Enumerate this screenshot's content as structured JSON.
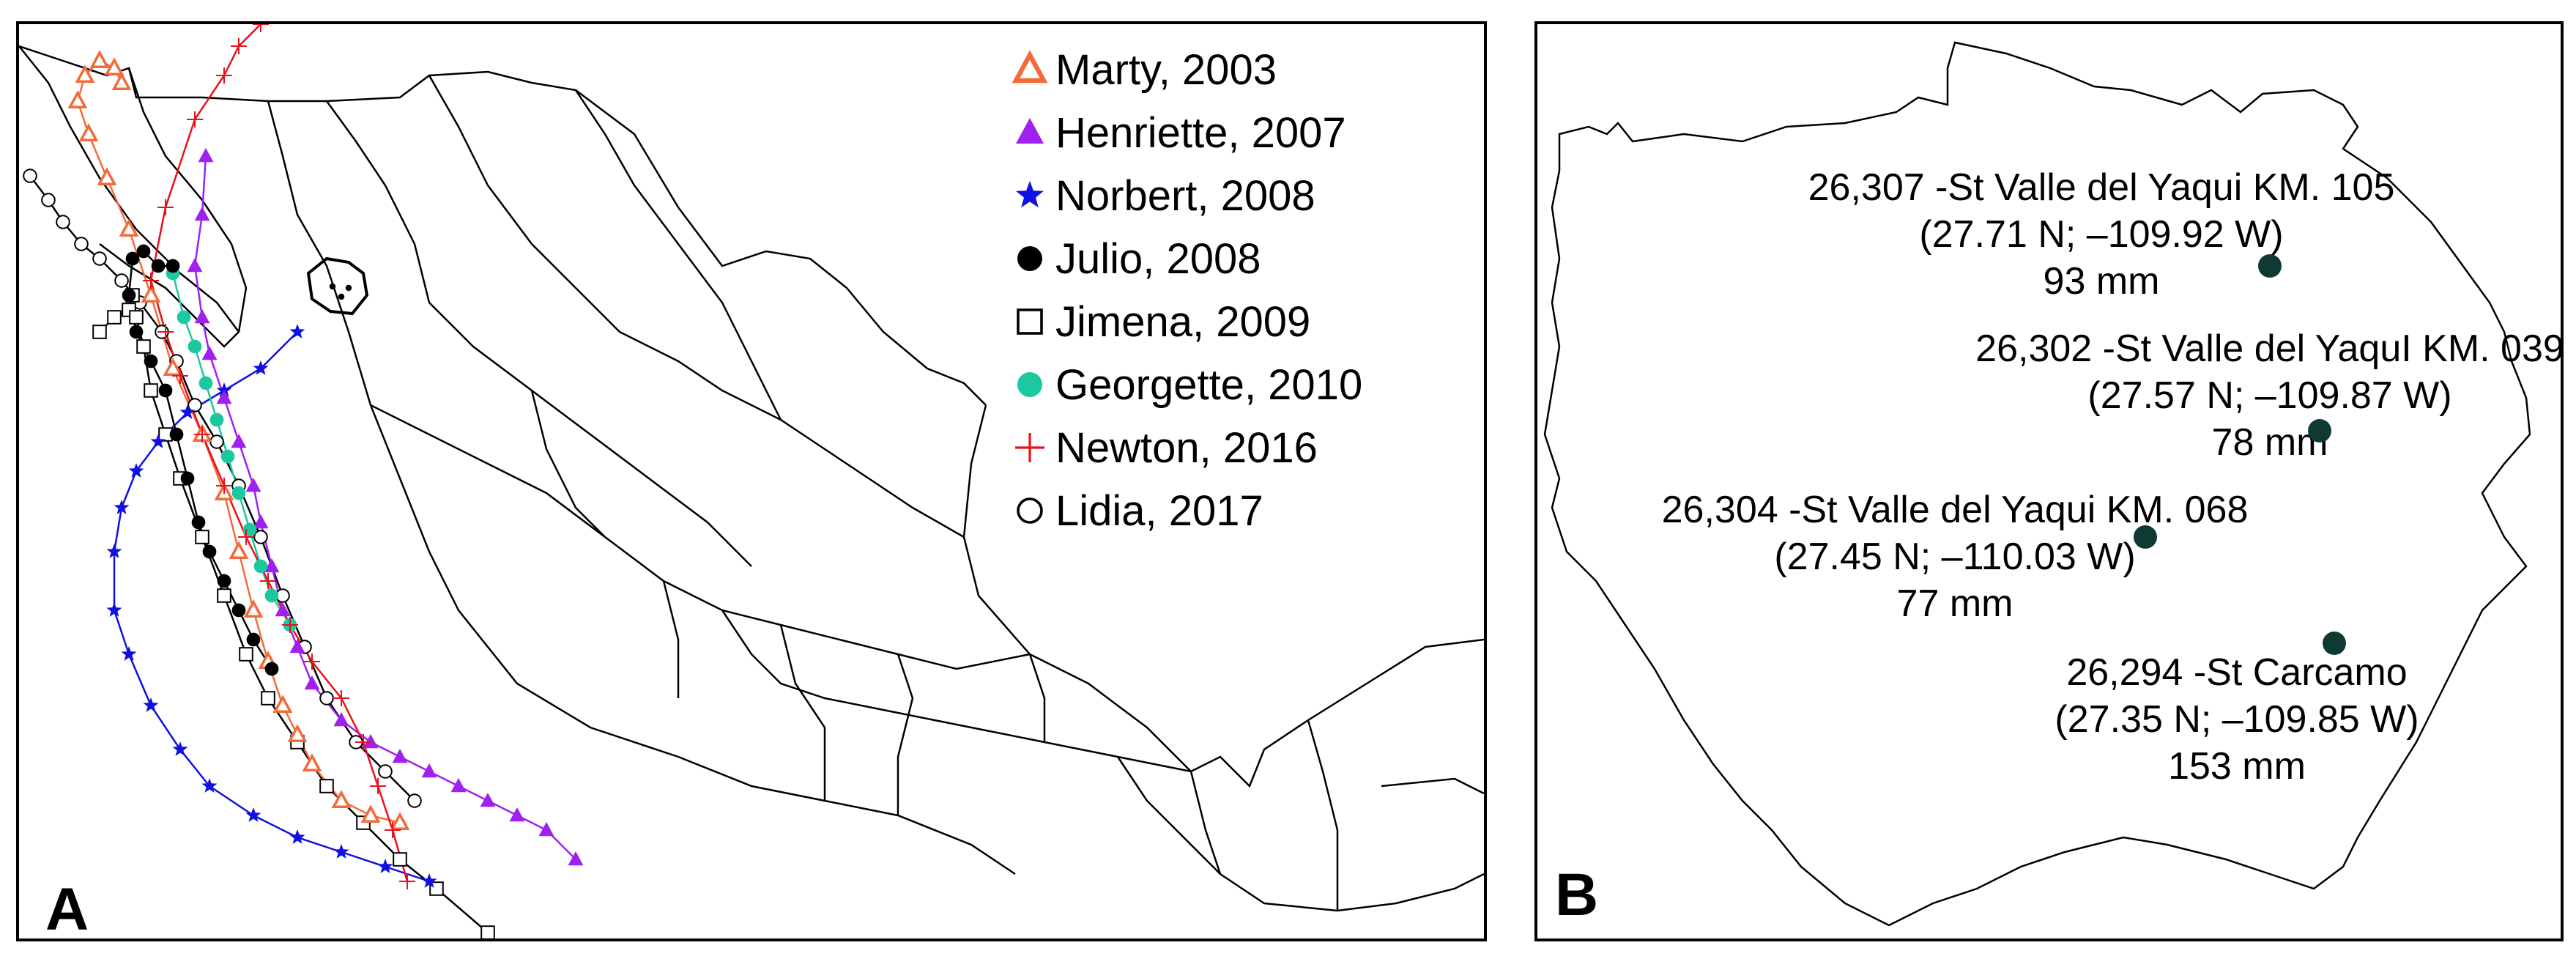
{
  "panel_a": {
    "letter": "A",
    "legend": [
      {
        "name": "Marty, 2003",
        "marker": "triangle-open",
        "color": "#F26B3A"
      },
      {
        "name": "Henriette, 2007",
        "marker": "triangle-filled",
        "color": "#A020F0"
      },
      {
        "name": "Norbert, 2008",
        "marker": "star",
        "color": "#1010E0"
      },
      {
        "name": "Julio, 2008",
        "marker": "circle-filled",
        "color": "#000000"
      },
      {
        "name": "Jimena, 2009",
        "marker": "square-open",
        "color": "#000000"
      },
      {
        "name": "Georgette, 2010",
        "marker": "circle-filled",
        "color": "#1BC8A0"
      },
      {
        "name": "Newton, 2016",
        "marker": "plus",
        "color": "#E8101A"
      },
      {
        "name": "Lidia, 2017",
        "marker": "circle-open",
        "color": "#000000"
      }
    ]
  },
  "panel_b": {
    "letter": "B",
    "stations": [
      {
        "id_name": "26,307 -St Valle del Yaqui KM. 105",
        "coords": "(27.71 N; –109.92 W)",
        "rain": "93 mm"
      },
      {
        "id_name": "26,302 -St Valle del YaquI KM. 039",
        "coords": "(27.57 N; –109.87 W)",
        "rain": "78 mm"
      },
      {
        "id_name": "26,304 -St Valle del Yaqui KM. 068",
        "coords": "(27.45 N; –110.03 W)",
        "rain": "77 mm"
      },
      {
        "id_name": "26,294 -St Carcamo",
        "coords": "(27.35 N; –109.85 W)",
        "rain": "153 mm"
      }
    ],
    "station_color": "#0F3A33"
  }
}
